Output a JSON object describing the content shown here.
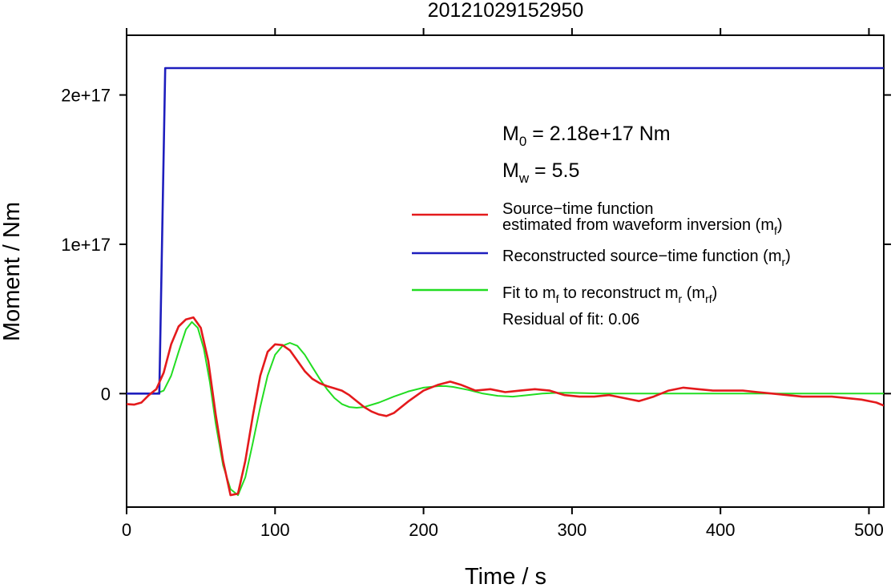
{
  "chart_data": {
    "type": "line",
    "title": "20121029152950",
    "xlabel": "Time / s",
    "ylabel": "Moment / Nm",
    "xlim": [
      0,
      510
    ],
    "ylim": [
      -7.6e+16,
      2.4e+17
    ],
    "grid": false,
    "x_ticks": [
      0,
      100,
      200,
      300,
      400,
      500
    ],
    "x_tick_labels": [
      "0",
      "100",
      "200",
      "300",
      "400",
      "500"
    ],
    "y_ticks": [
      0,
      1e+17,
      2e+17
    ],
    "y_tick_labels": [
      "0",
      "1e+17",
      "2e+17"
    ],
    "legend_position": "right",
    "annotations": {
      "m0": {
        "prefix": "M",
        "sub": "0",
        "suffix": " = 2.18e+17 Nm"
      },
      "mw": {
        "prefix": "M",
        "sub": "w",
        "suffix": " = 5.5"
      },
      "residual": "Residual of fit: 0.06"
    },
    "series": [
      {
        "key": "stf",
        "color": "#e41a1c",
        "legend_lines": [
          {
            "text": "Source−time function"
          },
          {
            "text": "estimated from waveform inversion (m",
            "sub": "f",
            "suffix": ")"
          }
        ],
        "x": [
          0,
          5,
          10,
          15,
          20,
          25,
          30,
          35,
          40,
          45,
          50,
          55,
          60,
          65,
          70,
          75,
          80,
          85,
          90,
          95,
          100,
          105,
          110,
          115,
          120,
          125,
          130,
          135,
          140,
          145,
          150,
          155,
          160,
          165,
          170,
          175,
          180,
          190,
          200,
          210,
          218,
          225,
          235,
          245,
          255,
          265,
          275,
          285,
          295,
          305,
          315,
          325,
          335,
          345,
          355,
          365,
          375,
          385,
          395,
          405,
          415,
          425,
          435,
          445,
          455,
          465,
          475,
          485,
          495,
          505,
          510
        ],
        "y": [
          -7000000000000000.0,
          -7400000000000000.0,
          -6000000000000000.0,
          -1000000000000000.0,
          3000000000000000.0,
          1.4e+16,
          3.3e+16,
          4.5e+16,
          4.97e+16,
          5.1e+16,
          4.4e+16,
          2.2e+16,
          -1.4e+16,
          -4.5e+16,
          -6.8e+16,
          -6.7e+16,
          -4.5e+16,
          -1.5e+16,
          1.2e+16,
          2.8e+16,
          3.3e+16,
          3.25e+16,
          2.9e+16,
          2.2e+16,
          1.5e+16,
          1e+16,
          7000000000000000.0,
          5000000000000000.0,
          3500000000000000.0,
          2000000000000000.0,
          -1000000000000000.0,
          -5000000000000000.0,
          -9000000000000000.0,
          -1.2e+16,
          -1.4e+16,
          -1.5e+16,
          -1.3e+16,
          -5000000000000000.0,
          2000000000000000.0,
          6000000000000000.0,
          8000000000000000.0,
          6000000000000000.0,
          2000000000000000.0,
          3000000000000000.0,
          1000000000000000.0,
          2000000000000000.0,
          3000000000000000.0,
          2000000000000000.0,
          -1000000000000000.0,
          -2000000000000000.0,
          -2000000000000000.0,
          -1000000000000000.0,
          -3000000000000000.0,
          -5000000000000000.0,
          -2000000000000000.0,
          2000000000000000.0,
          4000000000000000.0,
          3000000000000000.0,
          2000000000000000.0,
          2000000000000000.0,
          2000000000000000.0,
          1000000000000000.0,
          0,
          -1000000000000000.0,
          -2000000000000000.0,
          -2000000000000000.0,
          -2000000000000000.0,
          -3000000000000000.0,
          -4000000000000000.0,
          -6000000000000000.0,
          -8000000000000000.0
        ]
      },
      {
        "key": "reconstructed",
        "color": "#1e1ebe",
        "legend_lines": [
          {
            "text": "Reconstructed source−time function (m",
            "sub": "r",
            "suffix": ")"
          }
        ],
        "x": [
          0,
          22,
          26,
          510
        ],
        "y": [
          0,
          0,
          2.18e+17,
          2.18e+17
        ]
      },
      {
        "key": "fit",
        "color": "#22dd22",
        "legend_lines": [
          {
            "text": "Fit to m",
            "sub": "f",
            "suffix": " to reconstruct m",
            "sub2": "r",
            "suffix2": " (m",
            "sub3": "rf",
            "suffix3": ")"
          }
        ],
        "x": [
          0,
          5,
          10,
          15,
          20,
          25,
          30,
          35,
          40,
          44,
          48,
          52,
          56,
          60,
          65,
          70,
          75,
          80,
          85,
          90,
          95,
          100,
          105,
          110,
          115,
          120,
          125,
          130,
          135,
          140,
          145,
          150,
          155,
          160,
          170,
          180,
          190,
          200,
          210,
          215,
          220,
          230,
          240,
          250,
          260,
          270,
          280,
          290,
          300,
          320,
          340,
          360,
          380,
          400,
          420,
          440,
          460,
          480,
          500,
          510
        ],
        "y": [
          0,
          0,
          0,
          0,
          0,
          2000000000000000.0,
          1.2e+16,
          2.8e+16,
          4.3e+16,
          4.8e+16,
          4.4e+16,
          3e+16,
          8000000000000000.0,
          -2e+16,
          -4.8e+16,
          -6.4e+16,
          -6.8e+16,
          -5.6e+16,
          -3.3e+16,
          -9000000000000000.0,
          1.2e+16,
          2.6e+16,
          3.2e+16,
          3.4e+16,
          3.2e+16,
          2.6e+16,
          1.8e+16,
          1e+16,
          3000000000000000.0,
          -3000000000000000.0,
          -7000000000000000.0,
          -9000000000000000.0,
          -9500000000000000.0,
          -9000000000000000.0,
          -6000000000000000.0,
          -2000000000000000.0,
          1500000000000000.0,
          4000000000000000.0,
          5000000000000000.0,
          5000000000000000.0,
          4500000000000000.0,
          2500000000000000.0,
          0,
          -1500000000000000.0,
          -2000000000000000.0,
          -1000000000000000.0,
          0,
          500000000000000.0,
          500000000000000.0,
          0,
          0,
          0,
          0,
          0,
          0,
          0,
          0,
          0,
          0,
          0
        ]
      }
    ]
  }
}
